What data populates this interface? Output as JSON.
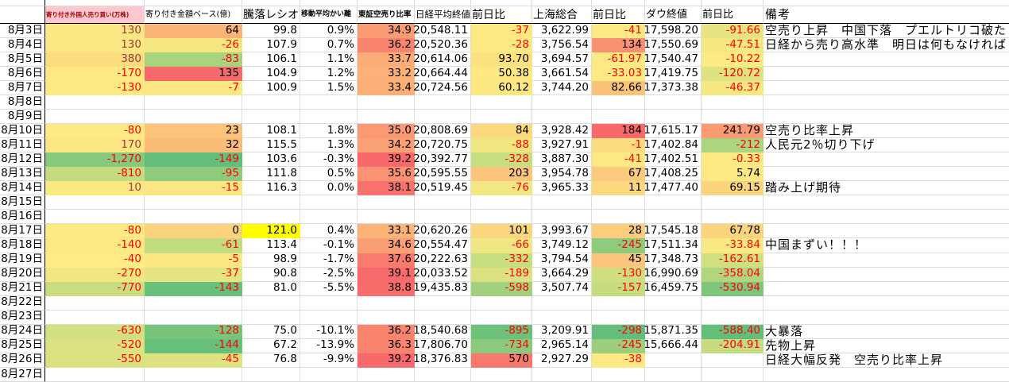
{
  "colors": {
    "negative_text": "#ff0000",
    "b_positive_text": "#9c3a3a",
    "bad_header_bg": "#ffc7ce",
    "bad_header_text": "#9c0006",
    "highlight_yellow": "#ffff00",
    "gridline": "#dcdcdc",
    "heavy_border": "#000000",
    "scale_red": "#f8696b",
    "scale_yellow": "#ffeb84",
    "scale_green": "#63be7b"
  },
  "sheet": {
    "columns": [
      {
        "id": "date",
        "label": ""
      },
      {
        "id": "b",
        "label": "寄り付き外国人売り買い(万株)"
      },
      {
        "id": "c",
        "label": "寄り付き金額ベース(億)"
      },
      {
        "id": "ratio",
        "label": "騰落レシオ"
      },
      {
        "id": "ma",
        "label": "移動平均かい離"
      },
      {
        "id": "short",
        "label": "東証空売り比率"
      },
      {
        "id": "nikkei",
        "label": "日経平均終値"
      },
      {
        "id": "nikkei_chg",
        "label": "前日比"
      },
      {
        "id": "shanghai",
        "label": "上海総合"
      },
      {
        "id": "shanghai_chg",
        "label": "前日比"
      },
      {
        "id": "dow",
        "label": "ダウ終値"
      },
      {
        "id": "dow_chg",
        "label": "前日比"
      },
      {
        "id": "note",
        "label": "備考"
      }
    ],
    "rows": [
      {
        "date": "8月3日",
        "b": "130",
        "b_bg": "#fbe884",
        "c": "64",
        "c_bg": "#fab477",
        "ratio": "99.8",
        "ma": "0.9%",
        "short": "34.9",
        "short_bg": "#fa9b74",
        "nikkei": "20,548.11",
        "nikkei_chg": "-37",
        "nikkei_chg_bg": "#fde983",
        "shanghai": "3,622.99",
        "shanghai_chg": "-41",
        "shanghai_chg_bg": "#fde983",
        "dow": "17,598.20",
        "dow_chg": "-91.66",
        "dow_chg_bg": "#e9e482",
        "note": "空売り上昇　中国下落　プエルトリコ破た"
      },
      {
        "date": "8月4日",
        "b": "130",
        "b_bg": "#fbe884",
        "c": "-26",
        "c_bg": "#f4e782",
        "ratio": "107.9",
        "ma": "0.7%",
        "short": "36.2",
        "short_bg": "#f9856f",
        "nikkei": "20,520.36",
        "nikkei_chg": "-28",
        "nikkei_chg_bg": "#fde983",
        "shanghai": "3,756.54",
        "shanghai_chg": "134",
        "shanghai_chg_bg": "#fa9072",
        "dow": "17,550.69",
        "dow_chg": "-47.51",
        "dow_chg_bg": "#f5e883",
        "note": "日経から売り高水準　明日は何もなければ"
      },
      {
        "date": "8月5日",
        "b": "380",
        "b_bg": "#fbdc7f",
        "c": "-83",
        "c_bg": "#a8d47f",
        "ratio": "106.1",
        "ma": "1.1%",
        "short": "33.7",
        "short_bg": "#fbac77",
        "nikkei": "20,614.06",
        "nikkei_chg": "93.70",
        "nikkei_chg_bg": "#fce181",
        "shanghai": "3,694.57",
        "shanghai_chg": "-61.97",
        "shanghai_chg_bg": "#fde983",
        "dow": "17,540.47",
        "dow_chg": "-10.22",
        "dow_chg_bg": "#fdea84",
        "note": ""
      },
      {
        "date": "8月6日",
        "b": "-170",
        "b_bg": "#fde984",
        "c": "135",
        "c_bg": "#f8696b",
        "ratio": "104.9",
        "ma": "1.2%",
        "short": "33.2",
        "short_bg": "#fbb178",
        "nikkei": "20,664.44",
        "nikkei_chg": "50.38",
        "nikkei_chg_bg": "#fde882",
        "shanghai": "3,661.54",
        "shanghai_chg": "-33.03",
        "shanghai_chg_bg": "#fdea84",
        "dow": "17,419.75",
        "dow_chg": "-120.72",
        "dow_chg_bg": "#dee281",
        "note": ""
      },
      {
        "date": "8月7日",
        "b": "-130",
        "b_bg": "#fde984",
        "c": "-7",
        "c_bg": "#fce883",
        "ratio": "100.9",
        "ma": "1.5%",
        "short": "33.4",
        "short_bg": "#fbaf77",
        "nikkei": "20,724.56",
        "nikkei_chg": "60.12",
        "nikkei_chg_bg": "#fde782",
        "shanghai": "3,744.20",
        "shanghai_chg": "82.66",
        "shanghai_chg_bg": "#fbc37a",
        "dow": "17,373.38",
        "dow_chg": "-46.37",
        "dow_chg_bg": "#f5e883",
        "note": ""
      },
      {
        "date": "8月8日"
      },
      {
        "date": "8月9日"
      },
      {
        "date": "8月10日",
        "b": "-80",
        "b_bg": "#fdea84",
        "c": "23",
        "c_bg": "#fbc47a",
        "ratio": "108.1",
        "ma": "1.8%",
        "short": "35.0",
        "short_bg": "#fa9974",
        "nikkei": "20,808.69",
        "nikkei_chg": "84",
        "nikkei_chg_bg": "#fcd97f",
        "shanghai": "3,928.42",
        "shanghai_chg": "184",
        "shanghai_chg_bg": "#f8696b",
        "dow": "17,615.17",
        "dow_chg": "241.79",
        "dow_chg_bg": "#fa9b74",
        "note": "空売り比率上昇"
      },
      {
        "date": "8月11日",
        "b": "170",
        "b_bg": "#fce683",
        "c": "32",
        "c_bg": "#fbbc79",
        "ratio": "115.5",
        "ma": "1.3%",
        "short": "34.2",
        "short_bg": "#faa175",
        "nikkei": "20,720.75",
        "nikkei_chg": "-88",
        "nikkei_chg_bg": "#efe682",
        "shanghai": "3,927.91",
        "shanghai_chg": "-1",
        "shanghai_chg_bg": "#fcdc80",
        "dow": "17,402.84",
        "dow_chg": "-212",
        "dow_chg_bg": "#abd57f",
        "note": "人民元2％切り下げ"
      },
      {
        "date": "8月12日",
        "b": "-1,270",
        "b_bg": "#86c87d",
        "c": "-149",
        "c_bg": "#63be7b",
        "ratio": "103.6",
        "ma": "-0.3%",
        "short": "39.2",
        "short_bg": "#f8696b",
        "nikkei": "20,392.77",
        "nikkei_chg": "-328",
        "nikkei_chg_bg": "#c6dd80",
        "shanghai": "3,887.30",
        "shanghai_chg": "-41",
        "shanghai_chg_bg": "#fde983",
        "dow": "17,402.51",
        "dow_chg": "-0.33",
        "dow_chg_bg": "#fdea84",
        "note": ""
      },
      {
        "date": "8月13日",
        "b": "-810",
        "b_bg": "#c4dc80",
        "c": "-95",
        "c_bg": "#90cb7d",
        "ratio": "111.8",
        "ma": "0.5%",
        "short": "35.6",
        "short_bg": "#fa9273",
        "nikkei": "20,595.55",
        "nikkei_chg": "203",
        "nikkei_chg_bg": "#fbc57b",
        "shanghai": "3,954.78",
        "shanghai_chg": "67",
        "shanghai_chg_bg": "#fbca7c",
        "dow": "17,408.25",
        "dow_chg": "5.74",
        "dow_chg_bg": "#fde983",
        "note": ""
      },
      {
        "date": "8月14日",
        "b": "10",
        "b_bg": "#fbe883",
        "c": "-15",
        "c_bg": "#fae783",
        "ratio": "116.3",
        "ma": "0.0%",
        "short": "38.1",
        "short_bg": "#f8736d",
        "nikkei": "20,519.45",
        "nikkei_chg": "-76",
        "nikkei_chg_bg": "#f2e782",
        "shanghai": "3,965.33",
        "shanghai_chg": "11",
        "shanghai_chg_bg": "#fcd97f",
        "dow": "17,477.40",
        "dow_chg": "69.15",
        "dow_chg_bg": "#fbd47e",
        "note": "踏み上げ期待"
      },
      {
        "date": "8月15日"
      },
      {
        "date": "8月16日"
      },
      {
        "date": "8月17日",
        "b": "-80",
        "b_bg": "#fdea84",
        "c": "0",
        "c_bg": "#fbd37d",
        "ratio": "121.0",
        "ratio_bg": "#ffff00",
        "ma": "0.4%",
        "short": "33.1",
        "short_bg": "#fbb378",
        "nikkei": "20,620.26",
        "nikkei_chg": "101",
        "nikkei_chg_bg": "#fcd67e",
        "shanghai": "3,993.67",
        "shanghai_chg": "28",
        "shanghai_chg_bg": "#fbcd7c",
        "dow": "17,545.18",
        "dow_chg": "67.78",
        "dow_chg_bg": "#fbd47e",
        "note": ""
      },
      {
        "date": "8月18日",
        "b": "-140",
        "b_bg": "#fde983",
        "c": "-61",
        "c_bg": "#c2dc80",
        "ratio": "113.4",
        "ma": "-0.1%",
        "short": "34.6",
        "short_bg": "#fa9e74",
        "nikkei": "20,554.47",
        "nikkei_chg": "-66",
        "nikkei_chg_bg": "#f0e682",
        "shanghai": "3,749.12",
        "shanghai_chg": "-245",
        "shanghai_chg_bg": "#8fcb7d",
        "dow": "17,511.34",
        "dow_chg": "-33.84",
        "dow_chg_bg": "#f9e983",
        "note": "中国まずい！！！"
      },
      {
        "date": "8月19日",
        "b": "-40",
        "b_bg": "#feeb84",
        "c": "-5",
        "c_bg": "#fce883",
        "ratio": "98.9",
        "ma": "-1.7%",
        "short": "37.6",
        "short_bg": "#f97b6e",
        "nikkei": "20,222.63",
        "nikkei_chg": "-332",
        "nikkei_chg_bg": "#c6dd80",
        "shanghai": "3,794.54",
        "shanghai_chg": "45",
        "shanghai_chg_bg": "#fbc67b",
        "dow": "17,348.73",
        "dow_chg": "-162.61",
        "dow_chg_bg": "#d0df81",
        "note": ""
      },
      {
        "date": "8月20日",
        "b": "-270",
        "b_bg": "#f0e682",
        "c": "-37",
        "c_bg": "#e5e482",
        "ratio": "90.8",
        "ma": "-2.5%",
        "short": "39.1",
        "short_bg": "#f86a6b",
        "nikkei": "20,033.52",
        "nikkei_chg": "-189",
        "nikkei_chg_bg": "#dce181",
        "shanghai": "3,664.29",
        "shanghai_chg": "-130",
        "shanghai_chg_bg": "#cede80",
        "dow": "16,990.69",
        "dow_chg": "-358.04",
        "dow_chg_bg": "#b2d67f",
        "note": ""
      },
      {
        "date": "8月21日",
        "b": "-770",
        "b_bg": "#c8dd80",
        "c": "-143",
        "c_bg": "#68c07b",
        "ratio": "81.0",
        "ma": "-5.5%",
        "short": "38.8",
        "short_bg": "#f86d6c",
        "nikkei": "19,435.83",
        "nikkei_chg": "-598",
        "nikkei_chg_bg": "#a3d27e",
        "shanghai": "3,507.74",
        "shanghai_chg": "-157",
        "shanghai_chg_bg": "#c6dc80",
        "dow": "16,459.75",
        "dow_chg": "-530.94",
        "dow_chg_bg": "#7fc67c",
        "note": ""
      },
      {
        "date": "8月22日"
      },
      {
        "date": "8月23日"
      },
      {
        "date": "8月24日",
        "b": "-630",
        "b_bg": "#d3e081",
        "c": "-128",
        "c_bg": "#79c47c",
        "ratio": "75.0",
        "ma": "-10.1%",
        "short": "36.2",
        "short_bg": "#f9856f",
        "nikkei": "18,540.68",
        "nikkei_chg": "-895",
        "nikkei_chg_bg": "#6dc17b",
        "shanghai": "3,209.91",
        "shanghai_chg": "-298",
        "shanghai_chg_bg": "#63be7b",
        "dow": "15,871.35",
        "dow_chg": "-588.40",
        "dow_chg_bg": "#63be7b",
        "note": "大暴落"
      },
      {
        "date": "8月25日",
        "b": "-520",
        "b_bg": "#dce281",
        "c": "-144",
        "c_bg": "#66bf7b",
        "ratio": "67.2",
        "ma": "-13.9%",
        "short": "36.3",
        "short_bg": "#f9846f",
        "nikkei": "17,806.70",
        "nikkei_chg": "-734",
        "nikkei_chg_bg": "#8bca7d",
        "shanghai": "2,965.14",
        "shanghai_chg": "-245",
        "shanghai_chg_bg": "#9cce7e",
        "dow": "15,666.44",
        "dow_chg": "-204.91",
        "dow_chg_bg": "#c5dc80",
        "note": "先物上昇"
      },
      {
        "date": "8月26日",
        "b": "-550",
        "b_bg": "#d9e181",
        "c": "-45",
        "c_bg": "#dfe281",
        "ratio": "76.8",
        "ma": "-9.9%",
        "short": "39.2",
        "short_bg": "#f8696b",
        "nikkei": "18,376.83",
        "nikkei_chg": "570",
        "nikkei_chg_bg": "#f9786e",
        "shanghai": "2,927.29",
        "shanghai_chg": "-38",
        "shanghai_chg_bg": "#fde983",
        "dow": "",
        "dow_chg": "",
        "note": "日経大幅反発　空売り比率上昇"
      },
      {
        "date": "8月27日"
      }
    ]
  }
}
